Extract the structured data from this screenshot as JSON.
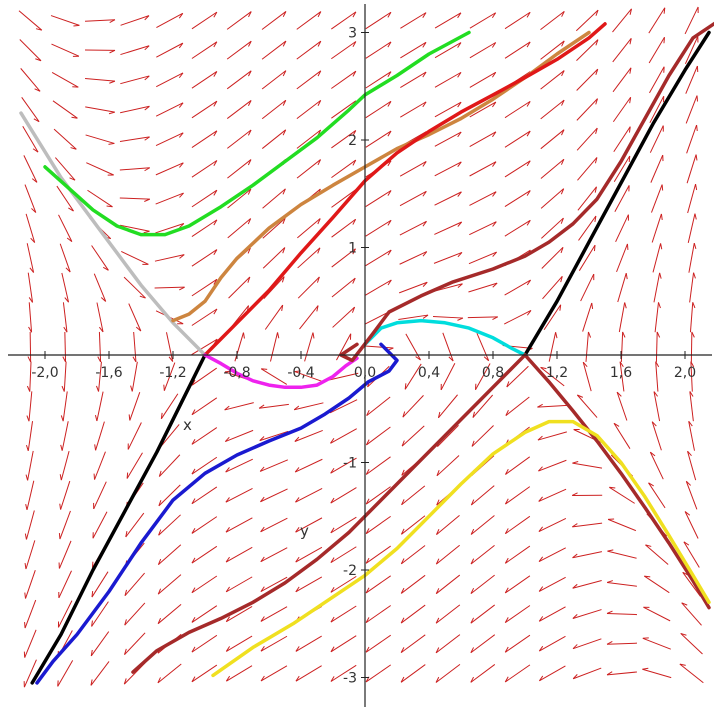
{
  "chart_data": {
    "type": "line",
    "xlabel": "x",
    "ylabel": "y",
    "xlim": [
      -2.2,
      2.15
    ],
    "ylim": [
      -3.1,
      3.25
    ],
    "x_tick_values": [
      -2.0,
      -1.6,
      -1.2,
      -0.8,
      -0.4,
      0.0,
      0.4,
      0.8,
      1.2,
      1.6,
      2.0
    ],
    "x_tick_labels": [
      "-2,0",
      "-1,6",
      "-1,2",
      "-0,8",
      "-0,4",
      "0,0",
      "0,4",
      "0,8",
      "1,2",
      "1,6",
      "2,0"
    ],
    "y_tick_values": [
      -3,
      -2,
      -1,
      1,
      2,
      3
    ],
    "y_tick_labels": [
      "-3",
      "-2",
      "-1",
      "1",
      "2",
      "3"
    ],
    "grid": false,
    "direction_field": {
      "color": "#cc2020",
      "x_count": 20,
      "y_count": 23
    },
    "series": [
      {
        "color": "#000000",
        "x": [
          -2.08,
          -1.9,
          -1.7,
          -1.5,
          -1.3,
          -1.1,
          -1.0
        ],
        "y": [
          -3.05,
          -2.6,
          -2.0,
          -1.45,
          -0.9,
          -0.3,
          0.0
        ]
      },
      {
        "color": "#000000",
        "x": [
          1.0,
          1.2,
          1.4,
          1.6,
          1.8,
          2.0,
          2.15
        ],
        "y": [
          0.0,
          0.5,
          1.05,
          1.6,
          2.15,
          2.65,
          3.0
        ]
      },
      {
        "color": "#bdbdbd",
        "x": [
          -2.15,
          -1.9,
          -1.65,
          -1.4,
          -1.2,
          -1.0
        ],
        "y": [
          2.25,
          1.65,
          1.15,
          0.65,
          0.3,
          0.0
        ]
      },
      {
        "color": "#22dd22",
        "x": [
          -2.0,
          -1.85,
          -1.7,
          -1.55,
          -1.4,
          -1.25,
          -1.1,
          -0.9,
          -0.7,
          -0.5,
          -0.3,
          -0.1,
          0.0,
          0.2,
          0.4,
          0.65
        ],
        "y": [
          1.75,
          1.55,
          1.35,
          1.2,
          1.12,
          1.12,
          1.2,
          1.38,
          1.58,
          1.8,
          2.02,
          2.28,
          2.42,
          2.6,
          2.8,
          3.0
        ]
      },
      {
        "color": "#cd853f",
        "x": [
          -1.2,
          -1.1,
          -1.0,
          -0.9,
          -0.8,
          -0.6,
          -0.4,
          -0.2,
          0.0,
          0.2,
          0.4,
          0.6,
          0.8,
          1.0,
          1.2,
          1.4
        ],
        "y": [
          0.32,
          0.38,
          0.5,
          0.72,
          0.9,
          1.18,
          1.4,
          1.58,
          1.75,
          1.92,
          2.05,
          2.2,
          2.38,
          2.58,
          2.8,
          3.0
        ]
      },
      {
        "color": "#e01818",
        "x": [
          -1.0,
          -0.9,
          -0.8,
          -0.6,
          -0.4,
          -0.2,
          0.0,
          0.2,
          0.4,
          0.6,
          0.8,
          1.0,
          1.2,
          1.4,
          1.5
        ],
        "y": [
          0.0,
          0.15,
          0.3,
          0.6,
          0.95,
          1.28,
          1.62,
          1.88,
          2.08,
          2.26,
          2.42,
          2.58,
          2.75,
          2.95,
          3.08
        ]
      },
      {
        "color": "#ee22ee",
        "x": [
          -1.0,
          -0.9,
          -0.8,
          -0.7,
          -0.6,
          -0.5,
          -0.4,
          -0.3,
          -0.2,
          -0.12,
          -0.05
        ],
        "y": [
          0.0,
          -0.08,
          -0.17,
          -0.24,
          -0.28,
          -0.3,
          -0.3,
          -0.28,
          -0.2,
          -0.1,
          -0.03
        ]
      },
      {
        "color": "#00dddd",
        "x": [
          0.0,
          0.1,
          0.2,
          0.35,
          0.5,
          0.65,
          0.8,
          0.92,
          1.0
        ],
        "y": [
          0.1,
          0.25,
          0.3,
          0.32,
          0.3,
          0.25,
          0.16,
          0.06,
          0.0
        ]
      },
      {
        "color": "#a52a2a",
        "x": [
          -0.05,
          -0.15,
          -0.08,
          0.05,
          0.15,
          0.35,
          0.55,
          0.8,
          1.0,
          1.15,
          1.3,
          1.45,
          1.6,
          1.75,
          1.9,
          2.05,
          2.2
        ],
        "y": [
          0.1,
          0.0,
          -0.05,
          0.2,
          0.4,
          0.55,
          0.68,
          0.8,
          0.92,
          1.05,
          1.22,
          1.45,
          1.8,
          2.2,
          2.6,
          2.95,
          3.1
        ]
      },
      {
        "color": "#a52a2a",
        "x": [
          -1.45,
          -1.3,
          -1.1,
          -0.9,
          -0.7,
          -0.5,
          -0.3,
          -0.1,
          0.1,
          0.3,
          0.5,
          0.7,
          0.9,
          1.0
        ],
        "y": [
          -2.95,
          -2.75,
          -2.58,
          -2.45,
          -2.3,
          -2.12,
          -1.9,
          -1.65,
          -1.35,
          -1.05,
          -0.75,
          -0.45,
          -0.15,
          0.0
        ]
      },
      {
        "color": "#a52a2a",
        "x": [
          1.0,
          1.15,
          1.3,
          1.45,
          1.6,
          1.75,
          1.9,
          2.05,
          2.15
        ],
        "y": [
          0.0,
          -0.25,
          -0.52,
          -0.8,
          -1.1,
          -1.42,
          -1.75,
          -2.1,
          -2.35
        ]
      },
      {
        "color": "#1a1ad0",
        "x": [
          0.1,
          0.2,
          0.15,
          0.02,
          -0.1,
          -0.25,
          -0.4,
          -0.6,
          -0.8,
          -1.0,
          -1.2,
          -1.4,
          -1.6,
          -1.8,
          -1.95,
          -2.05
        ],
        "y": [
          0.1,
          -0.05,
          -0.15,
          -0.25,
          -0.4,
          -0.55,
          -0.68,
          -0.8,
          -0.93,
          -1.1,
          -1.35,
          -1.75,
          -2.2,
          -2.6,
          -2.85,
          -3.05
        ]
      },
      {
        "color": "#f0e020",
        "x": [
          -0.95,
          -0.7,
          -0.45,
          -0.2,
          0.0,
          0.2,
          0.4,
          0.6,
          0.8,
          1.0,
          1.15,
          1.3,
          1.45,
          1.6,
          1.75,
          1.9,
          2.05,
          2.15
        ],
        "y": [
          -2.98,
          -2.72,
          -2.5,
          -2.25,
          -2.05,
          -1.8,
          -1.5,
          -1.2,
          -0.92,
          -0.72,
          -0.62,
          -0.62,
          -0.75,
          -1.0,
          -1.32,
          -1.68,
          -2.05,
          -2.3
        ]
      }
    ]
  }
}
